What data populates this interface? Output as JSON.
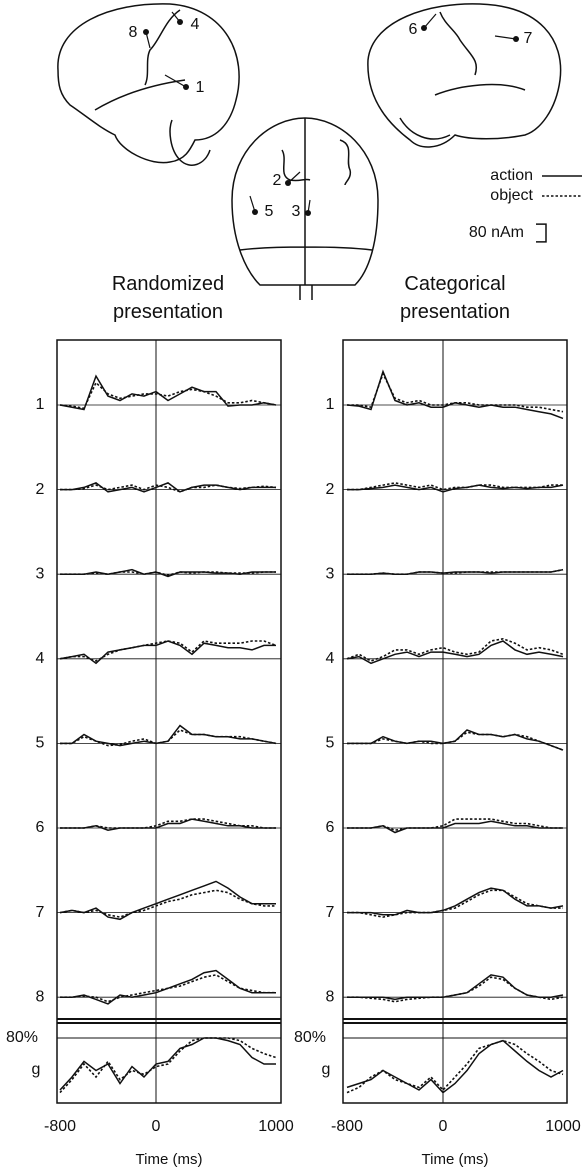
{
  "brain": {
    "sources": [
      "1",
      "2",
      "3",
      "4",
      "5",
      "6",
      "7",
      "8"
    ],
    "legend": [
      {
        "name": "action",
        "dash": false
      },
      {
        "name": "object",
        "dash": true
      }
    ],
    "scale_bar": {
      "value": 80,
      "label": "80 nAm"
    }
  },
  "chart_data": [
    {
      "type": "line",
      "title": "Randomized presentation",
      "xlabel": "Time (ms)",
      "x": [
        -800,
        -700,
        -600,
        -500,
        -400,
        -300,
        -200,
        -100,
        0,
        100,
        200,
        300,
        400,
        500,
        600,
        700,
        800,
        900,
        1000
      ],
      "xlim": [
        -800,
        1000
      ],
      "xticks": [
        -800,
        0,
        1000
      ],
      "ylim": [
        -190,
        190
      ],
      "rows": [
        {
          "label": "1",
          "series": [
            {
              "values": [
                0,
                -10,
                -20,
                130,
                40,
                20,
                50,
                40,
                60,
                20,
                50,
                80,
                60,
                60,
                -5,
                0,
                0,
                10,
                0
              ]
            },
            {
              "values": [
                0,
                -5,
                -15,
                100,
                50,
                30,
                40,
                50,
                50,
                40,
                60,
                70,
                60,
                40,
                10,
                10,
                20,
                10,
                0
              ]
            }
          ]
        },
        {
          "label": "2",
          "series": [
            {
              "values": [
                0,
                0,
                10,
                30,
                -10,
                0,
                10,
                -10,
                10,
                30,
                -10,
                10,
                20,
                20,
                10,
                0,
                10,
                10,
                10
              ]
            },
            {
              "values": [
                0,
                0,
                5,
                20,
                0,
                10,
                20,
                0,
                20,
                10,
                -10,
                10,
                10,
                20,
                10,
                5,
                10,
                15,
                10
              ]
            }
          ]
        },
        {
          "label": "3",
          "series": [
            {
              "values": [
                0,
                0,
                0,
                10,
                0,
                10,
                20,
                0,
                10,
                -10,
                10,
                10,
                10,
                5,
                5,
                0,
                10,
                10,
                10
              ]
            },
            {
              "values": [
                0,
                0,
                0,
                5,
                0,
                10,
                10,
                0,
                10,
                -5,
                10,
                5,
                10,
                10,
                5,
                5,
                5,
                10,
                10
              ]
            }
          ]
        },
        {
          "label": "4",
          "series": [
            {
              "values": [
                0,
                10,
                20,
                -20,
                30,
                40,
                50,
                60,
                60,
                80,
                60,
                20,
                70,
                60,
                50,
                50,
                40,
                60,
                60
              ]
            },
            {
              "values": [
                0,
                10,
                10,
                -10,
                20,
                40,
                50,
                60,
                70,
                80,
                70,
                30,
                80,
                70,
                70,
                70,
                80,
                80,
                60
              ]
            }
          ]
        },
        {
          "label": "5",
          "series": [
            {
              "values": [
                0,
                0,
                40,
                10,
                0,
                -10,
                0,
                10,
                0,
                10,
                80,
                40,
                40,
                30,
                30,
                20,
                20,
                10,
                0
              ]
            },
            {
              "values": [
                0,
                0,
                30,
                10,
                -10,
                -5,
                10,
                20,
                0,
                10,
                60,
                40,
                40,
                30,
                30,
                30,
                20,
                10,
                0
              ]
            }
          ]
        },
        {
          "label": "6",
          "series": [
            {
              "values": [
                0,
                0,
                0,
                10,
                -10,
                0,
                0,
                0,
                0,
                20,
                20,
                40,
                30,
                20,
                10,
                10,
                0,
                0,
                0
              ]
            },
            {
              "values": [
                0,
                0,
                0,
                10,
                0,
                0,
                0,
                0,
                10,
                30,
                30,
                40,
                40,
                30,
                20,
                10,
                10,
                0,
                0
              ]
            }
          ]
        },
        {
          "label": "7",
          "series": [
            {
              "values": [
                0,
                10,
                0,
                20,
                -20,
                -30,
                0,
                20,
                40,
                60,
                80,
                100,
                120,
                140,
                110,
                70,
                40,
                40,
                40
              ]
            },
            {
              "values": [
                0,
                10,
                0,
                10,
                -10,
                -20,
                0,
                10,
                30,
                50,
                60,
                80,
                90,
                100,
                90,
                60,
                40,
                30,
                30
              ]
            }
          ]
        },
        {
          "label": "8",
          "series": [
            {
              "values": [
                0,
                0,
                10,
                -10,
                -30,
                10,
                0,
                10,
                20,
                40,
                60,
                80,
                110,
                120,
                80,
                40,
                20,
                20,
                20
              ]
            },
            {
              "values": [
                0,
                0,
                5,
                0,
                -20,
                0,
                10,
                20,
                30,
                40,
                50,
                70,
                90,
                100,
                70,
                40,
                30,
                20,
                20
              ]
            }
          ]
        }
      ],
      "g": {
        "label": "g",
        "ylim": [
          30,
          90
        ],
        "reference": {
          "value": 80,
          "label": "80%"
        },
        "series": [
          {
            "values": [
              40,
              50,
              62,
              55,
              60,
              45,
              58,
              50,
              60,
              62,
              72,
              75,
              80,
              80,
              78,
              75,
              65,
              60,
              60
            ]
          },
          {
            "values": [
              38,
              48,
              60,
              50,
              62,
              48,
              55,
              52,
              58,
              60,
              70,
              78,
              80,
              80,
              80,
              78,
              72,
              68,
              65
            ]
          }
        ]
      }
    },
    {
      "type": "line",
      "title": "Categorical presentation",
      "xlabel": "Time (ms)",
      "x": [
        -800,
        -700,
        -600,
        -500,
        -400,
        -300,
        -200,
        -100,
        0,
        100,
        200,
        300,
        400,
        500,
        600,
        700,
        800,
        900,
        1000
      ],
      "xlim": [
        -800,
        1000
      ],
      "xticks": [
        -800,
        0,
        1000
      ],
      "ylim": [
        -190,
        190
      ],
      "rows": [
        {
          "label": "1",
          "series": [
            {
              "values": [
                0,
                -5,
                -20,
                150,
                20,
                0,
                10,
                -10,
                -10,
                10,
                0,
                -10,
                0,
                -10,
                -10,
                -20,
                -30,
                -40,
                -60
              ]
            },
            {
              "values": [
                0,
                0,
                -10,
                140,
                30,
                10,
                20,
                0,
                0,
                10,
                10,
                0,
                0,
                0,
                0,
                -10,
                -10,
                -20,
                -30
              ]
            }
          ]
        },
        {
          "label": "2",
          "series": [
            {
              "values": [
                0,
                0,
                5,
                10,
                20,
                10,
                0,
                10,
                -10,
                5,
                10,
                20,
                10,
                5,
                10,
                5,
                10,
                10,
                20
              ]
            },
            {
              "values": [
                0,
                0,
                10,
                20,
                30,
                20,
                10,
                20,
                0,
                10,
                10,
                20,
                20,
                10,
                10,
                10,
                10,
                20,
                20
              ]
            }
          ]
        },
        {
          "label": "3",
          "series": [
            {
              "values": [
                0,
                0,
                0,
                5,
                0,
                0,
                10,
                10,
                5,
                10,
                10,
                10,
                5,
                10,
                10,
                10,
                10,
                10,
                20
              ]
            },
            {
              "values": [
                0,
                0,
                0,
                5,
                0,
                0,
                10,
                10,
                5,
                5,
                10,
                10,
                10,
                10,
                10,
                10,
                10,
                10,
                20
              ]
            }
          ]
        },
        {
          "label": "4",
          "series": [
            {
              "values": [
                0,
                10,
                -20,
                0,
                20,
                30,
                10,
                30,
                30,
                20,
                10,
                20,
                60,
                80,
                40,
                20,
                30,
                20,
                10
              ]
            },
            {
              "values": [
                0,
                20,
                -10,
                10,
                40,
                40,
                20,
                40,
                50,
                30,
                20,
                30,
                80,
                90,
                70,
                40,
                50,
                40,
                20
              ]
            }
          ]
        },
        {
          "label": "5",
          "series": [
            {
              "values": [
                0,
                0,
                0,
                30,
                10,
                0,
                10,
                10,
                0,
                10,
                60,
                40,
                40,
                30,
                40,
                20,
                10,
                -10,
                -30
              ]
            },
            {
              "values": [
                0,
                0,
                0,
                20,
                10,
                0,
                10,
                0,
                0,
                10,
                50,
                40,
                40,
                30,
                40,
                30,
                10,
                -10,
                -30
              ]
            }
          ]
        },
        {
          "label": "6",
          "series": [
            {
              "values": [
                0,
                0,
                0,
                10,
                -20,
                0,
                0,
                0,
                0,
                20,
                20,
                20,
                30,
                20,
                10,
                10,
                0,
                0,
                0
              ]
            },
            {
              "values": [
                0,
                0,
                0,
                10,
                -10,
                0,
                0,
                0,
                10,
                40,
                40,
                40,
                40,
                30,
                20,
                20,
                10,
                0,
                0
              ]
            }
          ]
        },
        {
          "label": "7",
          "series": [
            {
              "values": [
                0,
                0,
                0,
                -10,
                -10,
                10,
                0,
                0,
                10,
                30,
                60,
                90,
                110,
                100,
                60,
                30,
                30,
                20,
                30
              ]
            },
            {
              "values": [
                0,
                0,
                -10,
                -20,
                -10,
                0,
                0,
                0,
                10,
                20,
                50,
                80,
                100,
                100,
                70,
                40,
                30,
                20,
                20
              ]
            }
          ]
        },
        {
          "label": "8",
          "series": [
            {
              "values": [
                0,
                0,
                0,
                0,
                -10,
                0,
                0,
                0,
                0,
                10,
                20,
                60,
                100,
                90,
                40,
                10,
                0,
                0,
                10
              ]
            },
            {
              "values": [
                0,
                0,
                -5,
                -10,
                -20,
                -10,
                -5,
                0,
                0,
                10,
                20,
                50,
                90,
                80,
                40,
                10,
                0,
                -10,
                0
              ]
            }
          ]
        }
      ],
      "g": {
        "label": "g",
        "ylim": [
          30,
          90
        ],
        "reference": {
          "value": 80,
          "label": "80%"
        },
        "series": [
          {
            "values": [
              42,
              45,
              48,
              55,
              50,
              45,
              40,
              48,
              38,
              45,
              55,
              68,
              75,
              78,
              70,
              62,
              55,
              50,
              55
            ]
          },
          {
            "values": [
              38,
              42,
              50,
              55,
              48,
              45,
              42,
              50,
              40,
              50,
              60,
              72,
              75,
              78,
              75,
              68,
              62,
              55,
              52
            ]
          }
        ]
      }
    }
  ]
}
